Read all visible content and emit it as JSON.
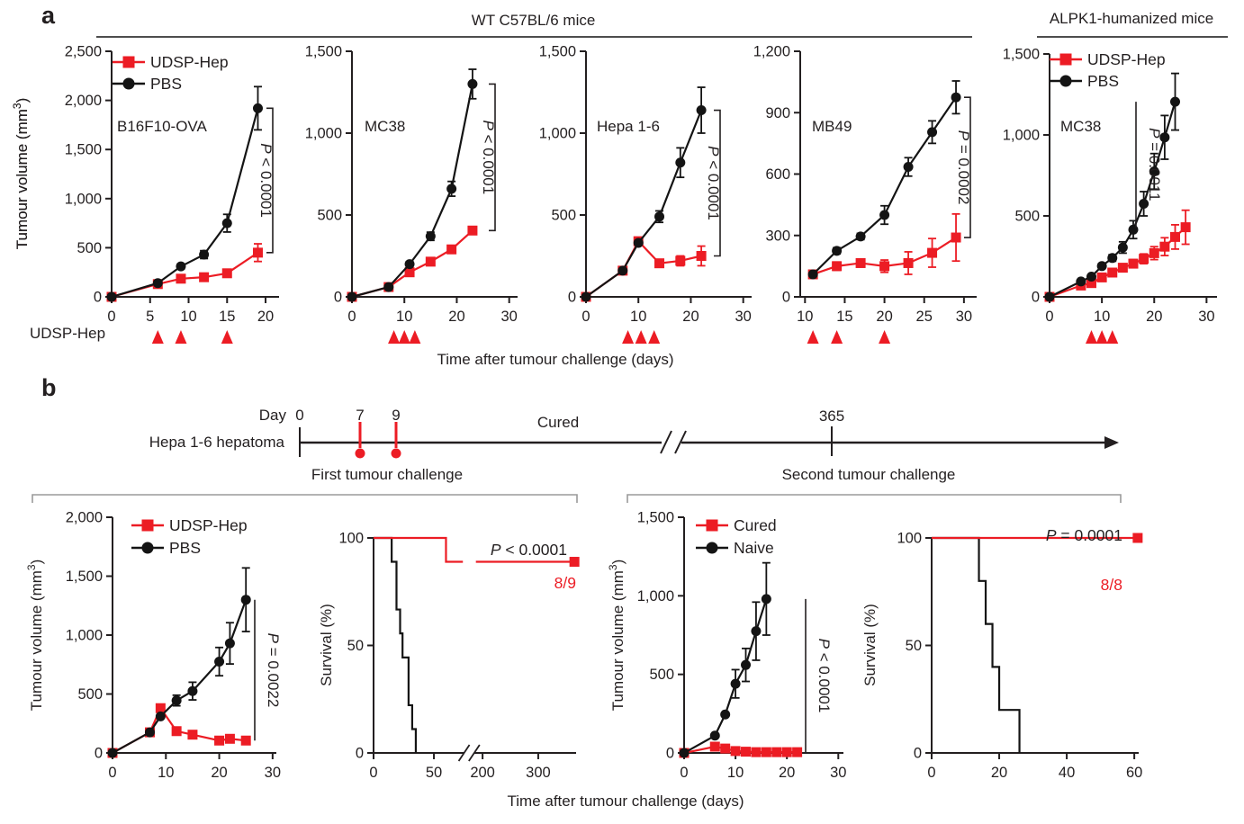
{
  "panel_a": {
    "label": "a",
    "group1_header": "WT C57BL/6 mice",
    "group2_header": "ALPK1-humanized mice",
    "treatment_row_label": "UDSP-Hep",
    "x_axis_title": "Time after tumour challenge (days)",
    "y_axis_title": "Tumour volume (mm³)"
  },
  "panel_b": {
    "label": "b",
    "timeline": {
      "left_label": "Hepa 1-6 hepatoma",
      "day_label": "Day",
      "day0": "0",
      "day7": "7",
      "day9": "9",
      "cured_label": "Cured",
      "day365": "365"
    },
    "section1_title": "First tumour challenge",
    "section2_title": "Second tumour challenge",
    "x_axis_title": "Time after tumour challenge (days)"
  },
  "colors": {
    "red": "#ec1c24",
    "black": "#141414",
    "text": "#231f20",
    "axis": "#231f20",
    "grey_bracket": "#9a9a9a",
    "header_line": "#4d4d4d"
  },
  "chart_data": [
    {
      "id": "a1",
      "type": "line",
      "title_in": "B16F10-OVA",
      "y_axis_title": "Tumour volume (mm³)",
      "x": {
        "ticks": [
          0,
          5,
          10,
          15,
          20
        ],
        "labels": [
          "0",
          "5",
          "10",
          "15",
          "20"
        ]
      },
      "y": {
        "ticks": [
          0,
          500,
          1000,
          1500,
          2000,
          2500
        ],
        "labels": [
          "0",
          "500",
          "1,000",
          "1,500",
          "2,000",
          "2,500"
        ]
      },
      "series": [
        {
          "name": "UDSP-Hep",
          "color": "red",
          "marker": "square",
          "x": [
            0,
            6,
            9,
            12,
            15,
            19
          ],
          "y": [
            0,
            130,
            185,
            200,
            240,
            450
          ],
          "err": [
            0,
            0,
            0,
            0,
            0,
            90
          ]
        },
        {
          "name": "PBS",
          "color": "black",
          "marker": "circle",
          "x": [
            0,
            6,
            9,
            12,
            15,
            19
          ],
          "y": [
            0,
            140,
            310,
            430,
            750,
            1920
          ],
          "err": [
            0,
            0,
            25,
            40,
            90,
            220
          ]
        }
      ],
      "legend": true,
      "arrows": [
        6,
        9,
        15
      ],
      "p": {
        "text": "P < 0.0001",
        "style": "bracket"
      }
    },
    {
      "id": "a2",
      "type": "line",
      "title_in": "MC38",
      "x": {
        "ticks": [
          0,
          10,
          20,
          30
        ],
        "labels": [
          "0",
          "10",
          "20",
          "30"
        ]
      },
      "y": {
        "ticks": [
          0,
          500,
          1000,
          1500
        ],
        "labels": [
          "0",
          "500",
          "1,000",
          "1,500"
        ]
      },
      "series": [
        {
          "name": "UDSP-Hep",
          "color": "red",
          "marker": "square",
          "x": [
            0,
            7,
            11,
            15,
            19,
            23
          ],
          "y": [
            0,
            60,
            150,
            215,
            290,
            405
          ],
          "err": [
            0,
            0,
            0,
            0,
            0,
            0
          ]
        },
        {
          "name": "PBS",
          "color": "black",
          "marker": "circle",
          "x": [
            0,
            7,
            11,
            15,
            19,
            23
          ],
          "y": [
            0,
            60,
            200,
            370,
            660,
            1300
          ],
          "err": [
            0,
            0,
            15,
            25,
            45,
            90
          ]
        }
      ],
      "legend": false,
      "arrows": [
        8,
        10,
        12
      ],
      "p": {
        "text": "P < 0.0001",
        "style": "bracket"
      }
    },
    {
      "id": "a3",
      "type": "line",
      "title_in": "Hepa 1-6",
      "x": {
        "ticks": [
          0,
          10,
          20,
          30
        ],
        "labels": [
          "0",
          "10",
          "20",
          "30"
        ]
      },
      "y": {
        "ticks": [
          0,
          500,
          1000,
          1500
        ],
        "labels": [
          "0",
          "500",
          "1,000",
          "1,500"
        ]
      },
      "series": [
        {
          "name": "UDSP-Hep",
          "color": "red",
          "marker": "square",
          "x": [
            0,
            7,
            10,
            14,
            18,
            22
          ],
          "y": [
            0,
            160,
            340,
            205,
            220,
            250
          ],
          "err": [
            0,
            0,
            0,
            20,
            30,
            60
          ]
        },
        {
          "name": "PBS",
          "color": "black",
          "marker": "circle",
          "x": [
            0,
            7,
            10,
            14,
            18,
            22
          ],
          "y": [
            0,
            160,
            330,
            490,
            820,
            1140
          ],
          "err": [
            0,
            0,
            0,
            35,
            90,
            140
          ]
        }
      ],
      "legend": false,
      "arrows": [
        8,
        10.5,
        13
      ],
      "p": {
        "text": "P < 0.0001",
        "style": "bracket"
      }
    },
    {
      "id": "a4",
      "type": "line",
      "title_in": "MB49",
      "x": {
        "ticks": [
          10,
          15,
          20,
          25,
          30
        ],
        "labels": [
          "10",
          "15",
          "20",
          "25",
          "30"
        ]
      },
      "y": {
        "ticks": [
          0,
          300,
          600,
          900,
          1200
        ],
        "labels": [
          "0",
          "300",
          "600",
          "900",
          "1,200"
        ]
      },
      "series": [
        {
          "name": "UDSP-Hep",
          "color": "red",
          "marker": "square",
          "x": [
            11,
            14,
            17,
            20,
            23,
            26,
            29
          ],
          "y": [
            110,
            150,
            165,
            150,
            165,
            215,
            290
          ],
          "err": [
            0,
            20,
            15,
            30,
            55,
            70,
            115
          ]
        },
        {
          "name": "PBS",
          "color": "black",
          "marker": "circle",
          "x": [
            11,
            14,
            17,
            20,
            23,
            26,
            29
          ],
          "y": [
            110,
            225,
            295,
            400,
            635,
            805,
            975
          ],
          "err": [
            0,
            15,
            15,
            45,
            45,
            55,
            80
          ]
        }
      ],
      "legend": false,
      "arrows": [
        11,
        14,
        20
      ],
      "p": {
        "text": "P = 0.0002",
        "style": "bracket"
      }
    },
    {
      "id": "a5",
      "type": "line",
      "title_in": "MC38",
      "x": {
        "ticks": [
          0,
          10,
          20,
          30
        ],
        "labels": [
          "0",
          "10",
          "20",
          "30"
        ]
      },
      "y": {
        "ticks": [
          0,
          500,
          1000,
          1500
        ],
        "labels": [
          "0",
          "500",
          "1,000",
          "1,500"
        ]
      },
      "series": [
        {
          "name": "UDSP-Hep",
          "color": "red",
          "marker": "square",
          "x": [
            0,
            6,
            8,
            10,
            12,
            14,
            16,
            18,
            20,
            22,
            24,
            26
          ],
          "y": [
            0,
            70,
            85,
            120,
            150,
            180,
            205,
            235,
            270,
            310,
            370,
            430
          ],
          "err": [
            0,
            0,
            0,
            0,
            0,
            20,
            25,
            30,
            40,
            55,
            75,
            105
          ]
        },
        {
          "name": "PBS",
          "color": "black",
          "marker": "circle",
          "x": [
            0,
            6,
            8,
            10,
            12,
            14,
            16,
            18,
            20,
            22,
            24
          ],
          "y": [
            0,
            95,
            125,
            190,
            240,
            305,
            415,
            575,
            775,
            985,
            1205
          ],
          "err": [
            0,
            0,
            0,
            15,
            20,
            35,
            55,
            75,
            110,
            135,
            175
          ]
        }
      ],
      "legend": true,
      "arrows": [
        8,
        10,
        12
      ],
      "p": {
        "text": "P = 0.0011",
        "style": "line"
      }
    },
    {
      "id": "b1",
      "type": "line",
      "title_in": "",
      "y_axis_title": "Tumour volume (mm³)",
      "x": {
        "ticks": [
          0,
          10,
          20,
          30
        ],
        "labels": [
          "0",
          "10",
          "20",
          "30"
        ]
      },
      "y": {
        "ticks": [
          0,
          500,
          1000,
          1500,
          2000
        ],
        "labels": [
          "0",
          "500",
          "1,000",
          "1,500",
          "2,000"
        ]
      },
      "series": [
        {
          "name": "UDSP-Hep",
          "color": "red",
          "marker": "square",
          "x": [
            0,
            7,
            9,
            12,
            15,
            20,
            22,
            25
          ],
          "y": [
            0,
            175,
            380,
            185,
            155,
            105,
            120,
            105
          ],
          "err": [
            0,
            0,
            0,
            0,
            0,
            0,
            0,
            0
          ]
        },
        {
          "name": "PBS",
          "color": "black",
          "marker": "circle",
          "x": [
            0,
            7,
            9,
            12,
            15,
            20,
            22,
            25
          ],
          "y": [
            0,
            175,
            310,
            445,
            525,
            775,
            930,
            1300
          ],
          "err": [
            0,
            0,
            0,
            45,
            75,
            120,
            175,
            270
          ]
        }
      ],
      "legend": true,
      "p": {
        "text": "P = 0.0022",
        "style": "line"
      }
    },
    {
      "id": "s1",
      "type": "step",
      "y_axis_title": "Survival (%)",
      "x": {
        "ticks": [
          0,
          50,
          200,
          300
        ],
        "labels": [
          "0",
          "50",
          "200",
          "300"
        ],
        "break": true
      },
      "y": {
        "ticks": [
          0,
          50,
          100
        ],
        "labels": [
          "0",
          "50",
          "100"
        ]
      },
      "series": [
        {
          "name": "PBS",
          "color": "black",
          "steps": [
            [
              0,
              100
            ],
            [
              15,
              100
            ],
            [
              15,
              88.9
            ],
            [
              19,
              88.9
            ],
            [
              19,
              66.7
            ],
            [
              22,
              66.7
            ],
            [
              22,
              55.6
            ],
            [
              24,
              55.6
            ],
            [
              24,
              44.4
            ],
            [
              29,
              44.4
            ],
            [
              29,
              22.2
            ],
            [
              32,
              22.2
            ],
            [
              32,
              11.1
            ],
            [
              35,
              11.1
            ],
            [
              35,
              0
            ]
          ]
        },
        {
          "name": "UDSP-Hep",
          "color": "red",
          "steps": [
            [
              0,
              100
            ],
            [
              60,
              100
            ],
            [
              60,
              88.9
            ],
            [
              74,
              88.9
            ]
          ]
        },
        {
          "name": "UDSP-Hep-after-break",
          "color": "red",
          "end_marker": true,
          "steps": [
            [
              188,
              88.9
            ],
            [
              365,
              88.9
            ]
          ]
        }
      ],
      "p": {
        "text": "P < 0.0001",
        "style": "top"
      },
      "count": "8/9"
    },
    {
      "id": "b3",
      "type": "line",
      "title_in": "",
      "y_axis_title": "Tumour volume (mm³)",
      "x": {
        "ticks": [
          0,
          10,
          20,
          30
        ],
        "labels": [
          "0",
          "10",
          "20",
          "30"
        ]
      },
      "y": {
        "ticks": [
          0,
          500,
          1000,
          1500
        ],
        "labels": [
          "0",
          "500",
          "1,000",
          "1,500"
        ]
      },
      "series": [
        {
          "name": "Cured",
          "color": "red",
          "marker": "square",
          "x": [
            0,
            6,
            8,
            10,
            12,
            14,
            16,
            18,
            20,
            22
          ],
          "y": [
            0,
            40,
            28,
            12,
            8,
            5,
            5,
            5,
            5,
            5
          ],
          "err": [
            0,
            0,
            0,
            0,
            0,
            0,
            0,
            0,
            0,
            0
          ]
        },
        {
          "name": "Naive",
          "color": "black",
          "marker": "circle",
          "x": [
            0,
            6,
            8,
            10,
            12,
            14,
            16
          ],
          "y": [
            0,
            110,
            245,
            440,
            560,
            775,
            980
          ],
          "err": [
            0,
            0,
            0,
            90,
            105,
            185,
            230
          ]
        }
      ],
      "legend": true,
      "p": {
        "text": "P < 0.0001",
        "style": "line"
      }
    },
    {
      "id": "s2",
      "type": "step",
      "y_axis_title": "Survival (%)",
      "x": {
        "ticks": [
          0,
          20,
          40,
          60
        ],
        "labels": [
          "0",
          "20",
          "40",
          "60"
        ]
      },
      "y": {
        "ticks": [
          0,
          50,
          100
        ],
        "labels": [
          "0",
          "50",
          "100"
        ]
      },
      "series": [
        {
          "name": "Naive",
          "color": "black",
          "steps": [
            [
              0,
              100
            ],
            [
              14,
              100
            ],
            [
              14,
              80
            ],
            [
              16,
              80
            ],
            [
              16,
              60
            ],
            [
              18,
              60
            ],
            [
              18,
              40
            ],
            [
              20,
              40
            ],
            [
              20,
              20
            ],
            [
              26,
              20
            ],
            [
              26,
              0
            ]
          ]
        },
        {
          "name": "Cured",
          "color": "red",
          "end_marker": true,
          "steps": [
            [
              0,
              100
            ],
            [
              61,
              100
            ]
          ]
        }
      ],
      "p": {
        "text": "P = 0.0001",
        "style": "top"
      },
      "count": "8/8"
    }
  ]
}
